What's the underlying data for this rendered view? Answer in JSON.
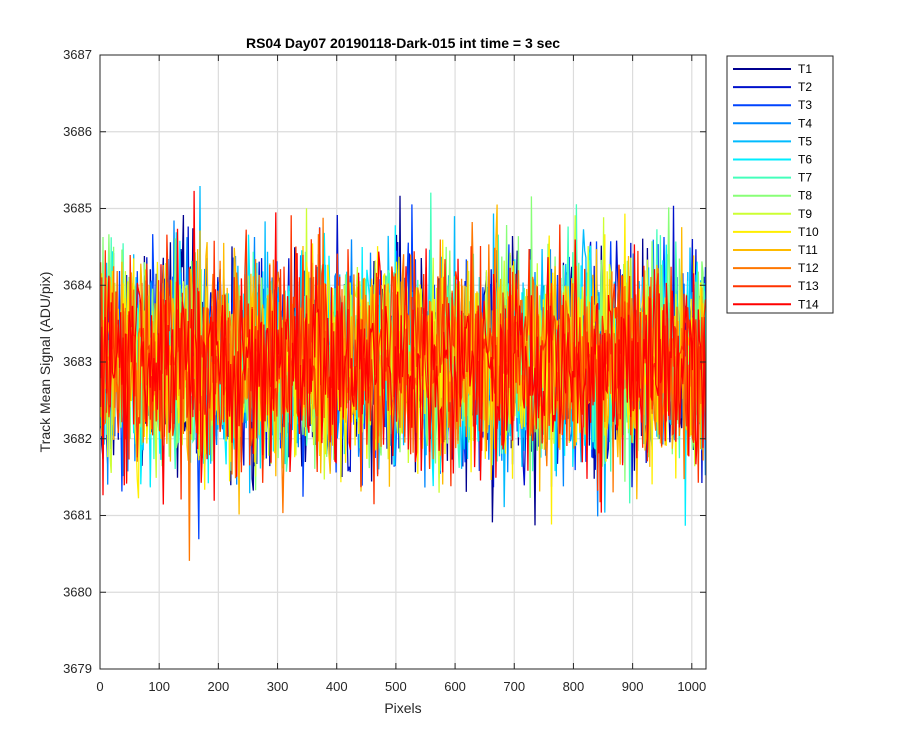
{
  "chart_data": {
    "type": "line",
    "title": "RS04 Day07 20190118-Dark-015 int time = 3 sec",
    "xlabel": "Pixels",
    "ylabel": "Track Mean Signal (ADU/pix)",
    "xlim": [
      0,
      1024
    ],
    "ylim": [
      3679,
      3687
    ],
    "xticks": [
      0,
      100,
      200,
      300,
      400,
      500,
      600,
      700,
      800,
      900,
      1000
    ],
    "yticks": [
      3679,
      3680,
      3681,
      3682,
      3683,
      3684,
      3685,
      3686,
      3687
    ],
    "xtick_labels": [
      "0",
      "100",
      "200",
      "300",
      "400",
      "500",
      "600",
      "700",
      "800",
      "900",
      "1000"
    ],
    "ytick_labels": [
      "3679",
      "3680",
      "3681",
      "3682",
      "3683",
      "3684",
      "3685",
      "3686",
      "3687"
    ],
    "grid": true,
    "legend_position": "outside-top-right",
    "series": [
      {
        "name": "T1",
        "color": "#00008F",
        "mean": 3683.0,
        "spread": 0.95
      },
      {
        "name": "T2",
        "color": "#0011CC",
        "mean": 3683.0,
        "spread": 0.95
      },
      {
        "name": "T3",
        "color": "#0044FF",
        "mean": 3683.0,
        "spread": 0.95
      },
      {
        "name": "T4",
        "color": "#0088FF",
        "mean": 3683.0,
        "spread": 0.95
      },
      {
        "name": "T5",
        "color": "#00BBFF",
        "mean": 3683.0,
        "spread": 0.95
      },
      {
        "name": "T6",
        "color": "#00EEFF",
        "mean": 3683.0,
        "spread": 0.95
      },
      {
        "name": "T7",
        "color": "#44FFBB",
        "mean": 3683.0,
        "spread": 0.95
      },
      {
        "name": "T8",
        "color": "#88FF77",
        "mean": 3683.0,
        "spread": 0.95
      },
      {
        "name": "T9",
        "color": "#CCFF33",
        "mean": 3683.0,
        "spread": 0.95
      },
      {
        "name": "T10",
        "color": "#FFEE00",
        "mean": 3683.0,
        "spread": 0.95
      },
      {
        "name": "T11",
        "color": "#FFBB00",
        "mean": 3683.0,
        "spread": 0.95
      },
      {
        "name": "T12",
        "color": "#FF7700",
        "mean": 3683.0,
        "spread": 0.95
      },
      {
        "name": "T13",
        "color": "#FF3300",
        "mean": 3683.0,
        "spread": 0.95
      },
      {
        "name": "T14",
        "color": "#FF0000",
        "mean": 3683.0,
        "spread": 0.95
      }
    ]
  }
}
